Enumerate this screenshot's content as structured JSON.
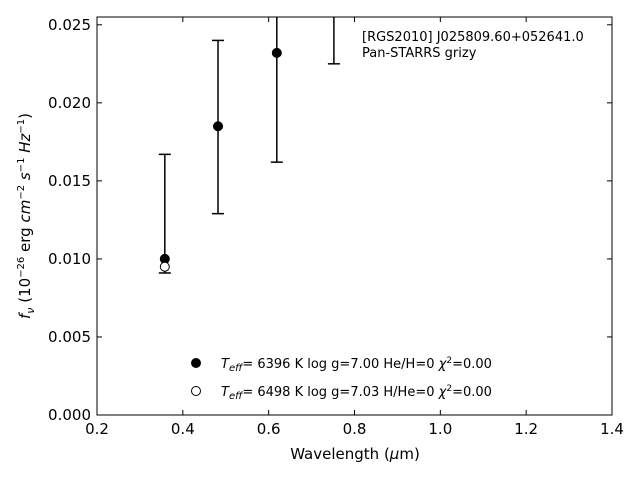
{
  "chart_data": {
    "type": "scatter",
    "xlabel_parts": [
      "Wavelength (",
      "μ",
      "m)"
    ],
    "ylabel_parts": [
      "f",
      "ν",
      " (10",
      "−26",
      " erg ",
      "cm",
      "−2",
      " ",
      "s",
      "−1",
      " ",
      "Hz",
      "−1",
      ")"
    ],
    "xlim": [
      0.2,
      1.4
    ],
    "ylim": [
      0.0,
      0.0255
    ],
    "xticks": [
      0.2,
      0.4,
      0.6,
      0.8,
      1.0,
      1.2,
      1.4
    ],
    "xtick_labels": [
      "0.2",
      "0.4",
      "0.6",
      "0.8",
      "1.0",
      "1.2",
      "1.4"
    ],
    "yticks": [
      0.0,
      0.005,
      0.01,
      0.015,
      0.02,
      0.025
    ],
    "ytick_labels": [
      "0.000",
      "0.005",
      "0.010",
      "0.015",
      "0.020",
      "0.025"
    ],
    "annotation_lines": [
      "[RGS2010] J025809.60+052641.0",
      "Pan-STARRS grizy"
    ],
    "observed": {
      "x": [
        0.358,
        0.482,
        0.619,
        0.752
      ],
      "y_low": [
        0.0091,
        0.0129,
        0.0162,
        0.0225
      ],
      "y_high": [
        0.0167,
        0.024,
        0.0265,
        0.0265
      ]
    },
    "series": [
      {
        "marker": "filled-circle",
        "x": [
          0.358,
          0.482,
          0.619
        ],
        "y": [
          0.01,
          0.0185,
          0.0232
        ],
        "legend_parts": [
          "T",
          "eff",
          "=  6396 K  log g=7.00  He/H=0  ",
          "χ",
          "2",
          "=0.00"
        ]
      },
      {
        "marker": "open-circle",
        "x": [
          0.358
        ],
        "y": [
          0.0095
        ],
        "legend_parts": [
          "T",
          "eff",
          "=  6498 K  log g=7.03  H/He=0  ",
          "χ",
          "2",
          "=0.00"
        ]
      }
    ],
    "legend_location": "bottom-center"
  }
}
